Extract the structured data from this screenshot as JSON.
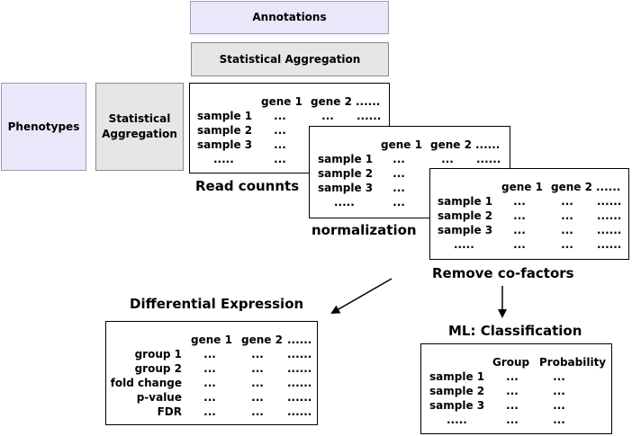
{
  "annotations": {
    "label": "Annotations"
  },
  "stat_agg_top": {
    "label": "Statistical Aggregation"
  },
  "phenotypes": {
    "label": "Phenotypes"
  },
  "stat_agg_left": {
    "line1": "Statistical",
    "line2": "Aggregation"
  },
  "read_counts": {
    "cols": [
      "gene 1",
      "gene 2",
      "......"
    ],
    "rows": [
      {
        "label": "sample 1",
        "cells": [
          "...",
          "...",
          "......"
        ]
      },
      {
        "label": "sample 2",
        "cells": [
          "...",
          "",
          ""
        ]
      },
      {
        "label": "sample 3",
        "cells": [
          "...",
          "",
          ""
        ]
      },
      {
        "label": ".....",
        "cells": [
          "...",
          "",
          ""
        ]
      }
    ],
    "caption": "Read counnts"
  },
  "normalization": {
    "cols": [
      "gene 1",
      "gene 2",
      "......"
    ],
    "rows": [
      {
        "label": "sample 1",
        "cells": [
          "...",
          "...",
          "......"
        ]
      },
      {
        "label": "sample 2",
        "cells": [
          "...",
          "",
          ""
        ]
      },
      {
        "label": "sample 3",
        "cells": [
          "...",
          "",
          ""
        ]
      },
      {
        "label": ".....",
        "cells": [
          "...",
          "",
          ""
        ]
      }
    ],
    "caption": "normalization"
  },
  "remove_cofactors": {
    "cols": [
      "gene 1",
      "gene 2",
      "......"
    ],
    "rows": [
      {
        "label": "sample 1",
        "cells": [
          "...",
          "...",
          "......"
        ]
      },
      {
        "label": "sample 2",
        "cells": [
          "...",
          "...",
          "......"
        ]
      },
      {
        "label": "sample 3",
        "cells": [
          "...",
          "...",
          "......"
        ]
      },
      {
        "label": ".....",
        "cells": [
          "...",
          "...",
          "......"
        ]
      }
    ],
    "caption": "Remove co-factors"
  },
  "differential_expression": {
    "title": "Differential Expression",
    "cols": [
      "gene 1",
      "gene 2",
      "......"
    ],
    "rows": [
      {
        "label": "group 1",
        "cells": [
          "...",
          "...",
          "......"
        ]
      },
      {
        "label": "group 2",
        "cells": [
          "...",
          "...",
          "......"
        ]
      },
      {
        "label": "fold change",
        "cells": [
          "...",
          "...",
          "......"
        ]
      },
      {
        "label": "p-value",
        "cells": [
          "...",
          "...",
          "......"
        ]
      },
      {
        "label": "FDR",
        "cells": [
          "...",
          "...",
          "......"
        ]
      }
    ]
  },
  "ml_classification": {
    "title": "ML: Classification",
    "cols": [
      "Group",
      "Probability"
    ],
    "rows": [
      {
        "label": "sample 1",
        "cells": [
          "...",
          "..."
        ]
      },
      {
        "label": "sample 2",
        "cells": [
          "...",
          "..."
        ]
      },
      {
        "label": "sample 3",
        "cells": [
          "...",
          "..."
        ]
      },
      {
        "label": ".....",
        "cells": [
          "...",
          "..."
        ]
      }
    ]
  }
}
